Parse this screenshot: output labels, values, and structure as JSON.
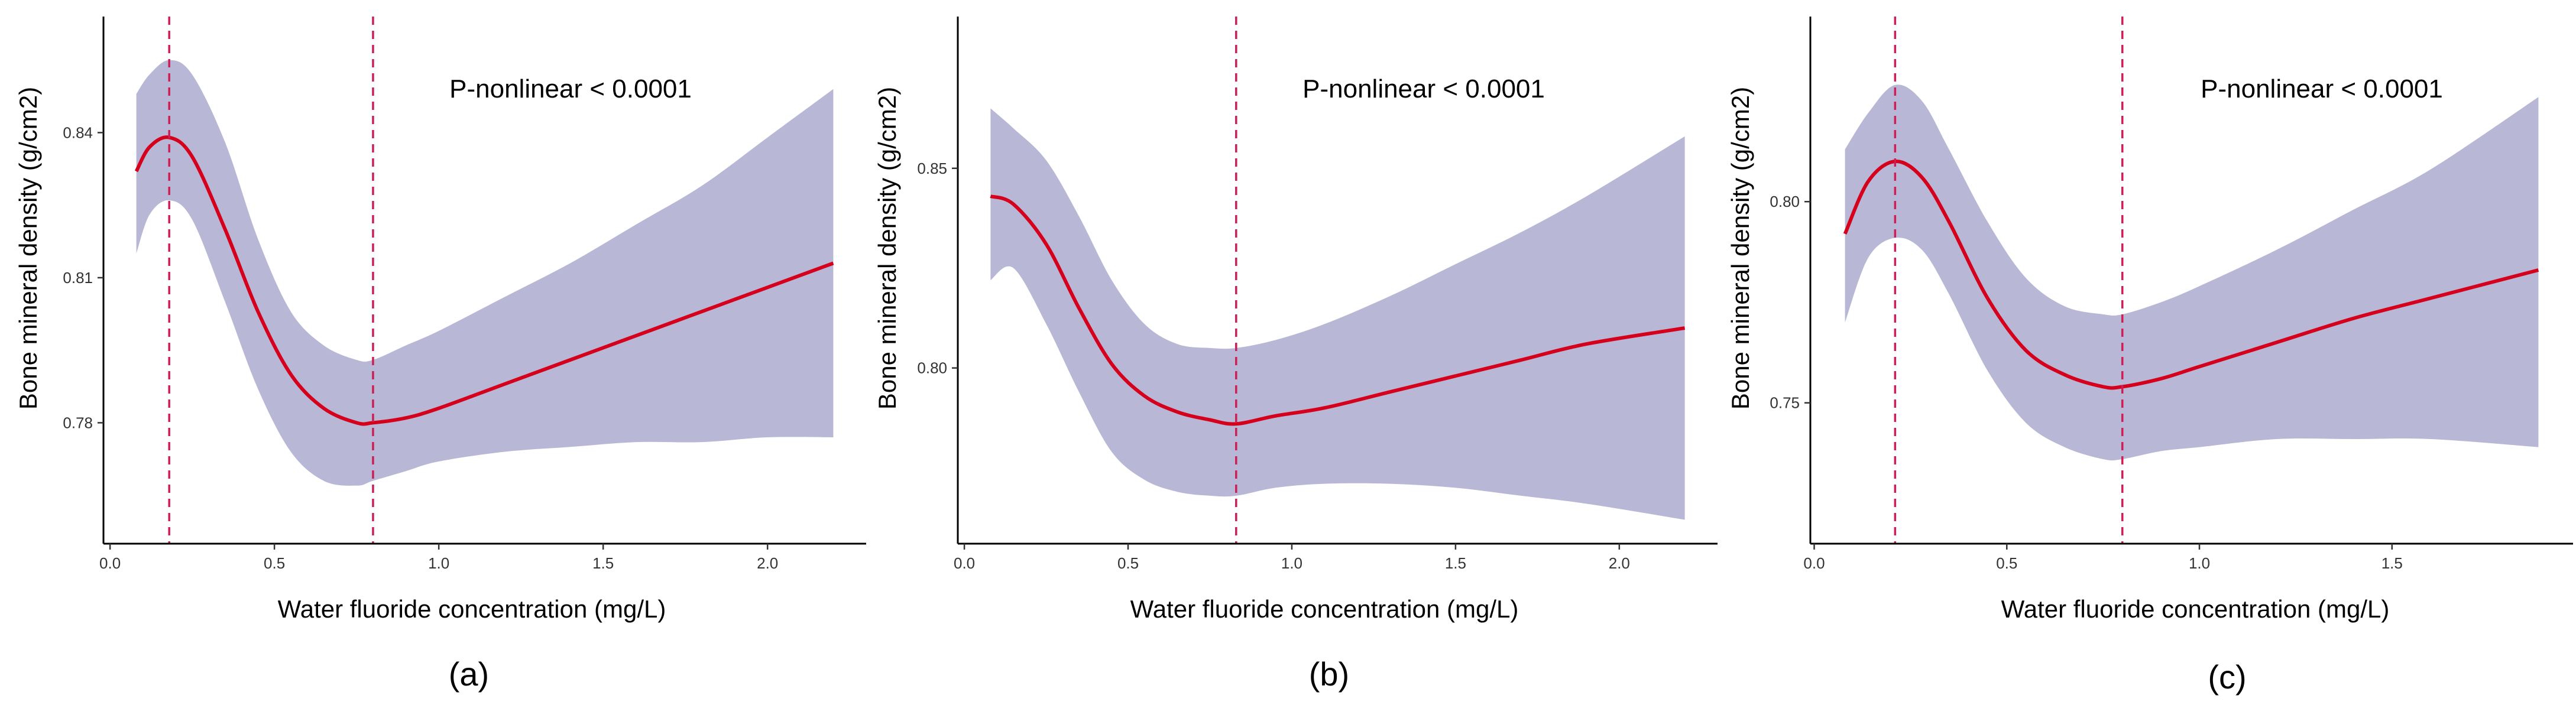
{
  "chart_data": [
    {
      "type": "line",
      "panel_label": "(a)",
      "annotation": "P-nonlinear < 0.0001",
      "xlabel": "Water fluoride concentration (mg/L)",
      "ylabel": "Bone mineral density  (g/cm2)",
      "xlim": [
        -0.02,
        2.3
      ],
      "ylim": [
        0.755,
        0.864
      ],
      "xticks": [
        0.0,
        0.5,
        1.0,
        1.5,
        2.0
      ],
      "xtick_labels": [
        "0.0",
        "0.5",
        "1.0",
        "1.5",
        "2.0"
      ],
      "yticks": [
        0.78,
        0.81,
        0.84
      ],
      "ytick_labels": [
        "0.78",
        "0.81",
        "0.84"
      ],
      "ref_lines_x": [
        0.18,
        0.8
      ],
      "series": [
        {
          "name": "fit",
          "x": [
            0.08,
            0.12,
            0.18,
            0.25,
            0.35,
            0.45,
            0.55,
            0.65,
            0.75,
            0.8,
            0.9,
            1.0,
            1.2,
            1.4,
            1.6,
            1.8,
            2.0,
            2.2
          ],
          "values": [
            0.832,
            0.837,
            0.839,
            0.835,
            0.82,
            0.803,
            0.79,
            0.783,
            0.78,
            0.78,
            0.781,
            0.783,
            0.788,
            0.793,
            0.798,
            0.803,
            0.808,
            0.813
          ]
        },
        {
          "name": "upper",
          "x": [
            0.08,
            0.12,
            0.18,
            0.25,
            0.35,
            0.45,
            0.55,
            0.65,
            0.75,
            0.8,
            0.9,
            1.0,
            1.2,
            1.4,
            1.6,
            1.8,
            2.0,
            2.2
          ],
          "values": [
            0.848,
            0.852,
            0.855,
            0.852,
            0.838,
            0.818,
            0.803,
            0.796,
            0.793,
            0.793,
            0.796,
            0.799,
            0.806,
            0.813,
            0.821,
            0.829,
            0.839,
            0.849
          ]
        },
        {
          "name": "lower",
          "x": [
            0.08,
            0.12,
            0.18,
            0.25,
            0.35,
            0.45,
            0.55,
            0.65,
            0.75,
            0.8,
            0.9,
            1.0,
            1.2,
            1.4,
            1.6,
            1.8,
            2.0,
            2.2
          ],
          "values": [
            0.815,
            0.823,
            0.826,
            0.822,
            0.805,
            0.787,
            0.774,
            0.768,
            0.767,
            0.768,
            0.77,
            0.772,
            0.774,
            0.775,
            0.776,
            0.776,
            0.777,
            0.777
          ]
        }
      ]
    },
    {
      "type": "line",
      "panel_label": "(b)",
      "annotation": "P-nonlinear < 0.0001",
      "xlabel": "Water fluoride concentration (mg/L)",
      "ylabel": "Bone mineral density  (g/cm2)",
      "xlim": [
        -0.02,
        2.3
      ],
      "ylim": [
        0.756,
        0.888
      ],
      "xticks": [
        0.0,
        0.5,
        1.0,
        1.5,
        2.0
      ],
      "xtick_labels": [
        "0.0",
        "0.5",
        "1.0",
        "1.5",
        "2.0"
      ],
      "yticks": [
        0.8,
        0.85
      ],
      "ytick_labels": [
        "0.80",
        "0.85"
      ],
      "ref_lines_x": [
        0.83
      ],
      "series": [
        {
          "name": "fit",
          "x": [
            0.08,
            0.15,
            0.25,
            0.35,
            0.45,
            0.55,
            0.65,
            0.75,
            0.83,
            0.95,
            1.1,
            1.3,
            1.5,
            1.7,
            1.9,
            2.2
          ],
          "values": [
            0.843,
            0.841,
            0.831,
            0.815,
            0.801,
            0.793,
            0.789,
            0.787,
            0.786,
            0.788,
            0.79,
            0.794,
            0.798,
            0.802,
            0.806,
            0.81
          ]
        },
        {
          "name": "upper",
          "x": [
            0.08,
            0.15,
            0.25,
            0.35,
            0.45,
            0.55,
            0.65,
            0.75,
            0.83,
            0.95,
            1.1,
            1.3,
            1.5,
            1.7,
            1.9,
            2.2
          ],
          "values": [
            0.865,
            0.86,
            0.852,
            0.838,
            0.822,
            0.811,
            0.806,
            0.805,
            0.805,
            0.807,
            0.811,
            0.818,
            0.826,
            0.834,
            0.843,
            0.858
          ]
        },
        {
          "name": "lower",
          "x": [
            0.08,
            0.15,
            0.25,
            0.35,
            0.45,
            0.55,
            0.65,
            0.75,
            0.83,
            0.95,
            1.1,
            1.3,
            1.5,
            1.7,
            1.9,
            2.2
          ],
          "values": [
            0.822,
            0.825,
            0.811,
            0.794,
            0.779,
            0.772,
            0.769,
            0.768,
            0.768,
            0.77,
            0.771,
            0.771,
            0.77,
            0.768,
            0.766,
            0.762
          ]
        }
      ]
    },
    {
      "type": "line",
      "panel_label": "(c)",
      "annotation": "P-nonlinear < 0.0001",
      "xlabel": "Water fluoride concentration (mg/L)",
      "ylabel": "Bone mineral density  (g/cm2)",
      "xlim": [
        -0.01,
        1.97
      ],
      "ylim": [
        0.715,
        0.846
      ],
      "xticks": [
        0.0,
        0.5,
        1.0,
        1.5
      ],
      "xtick_labels": [
        "0.0",
        "0.5",
        "1.0",
        "1.5"
      ],
      "yticks": [
        0.75,
        0.8
      ],
      "ytick_labels": [
        "0.75",
        "0.80"
      ],
      "ref_lines_x": [
        0.21,
        0.8
      ],
      "series": [
        {
          "name": "fit",
          "x": [
            0.08,
            0.14,
            0.21,
            0.28,
            0.35,
            0.45,
            0.55,
            0.65,
            0.75,
            0.8,
            0.9,
            1.0,
            1.2,
            1.4,
            1.6,
            1.88
          ],
          "values": [
            0.792,
            0.805,
            0.81,
            0.806,
            0.795,
            0.776,
            0.763,
            0.757,
            0.754,
            0.754,
            0.756,
            0.759,
            0.765,
            0.771,
            0.776,
            0.783
          ]
        },
        {
          "name": "upper",
          "x": [
            0.08,
            0.14,
            0.21,
            0.28,
            0.35,
            0.45,
            0.55,
            0.65,
            0.75,
            0.8,
            0.9,
            1.0,
            1.2,
            1.4,
            1.6,
            1.88
          ],
          "values": [
            0.813,
            0.822,
            0.829,
            0.825,
            0.813,
            0.795,
            0.781,
            0.774,
            0.772,
            0.772,
            0.775,
            0.779,
            0.788,
            0.798,
            0.808,
            0.826
          ]
        },
        {
          "name": "lower",
          "x": [
            0.08,
            0.14,
            0.21,
            0.28,
            0.35,
            0.45,
            0.55,
            0.65,
            0.75,
            0.8,
            0.9,
            1.0,
            1.2,
            1.4,
            1.6,
            1.88
          ],
          "values": [
            0.77,
            0.786,
            0.791,
            0.788,
            0.777,
            0.758,
            0.745,
            0.739,
            0.736,
            0.736,
            0.738,
            0.739,
            0.741,
            0.741,
            0.741,
            0.739
          ]
        }
      ]
    }
  ],
  "colors": {
    "band": "#b7b6d4",
    "band_lower": "#babae0",
    "fit_line": "#d5001c",
    "ref_line": "#cc1f56",
    "axis": "#000000"
  }
}
